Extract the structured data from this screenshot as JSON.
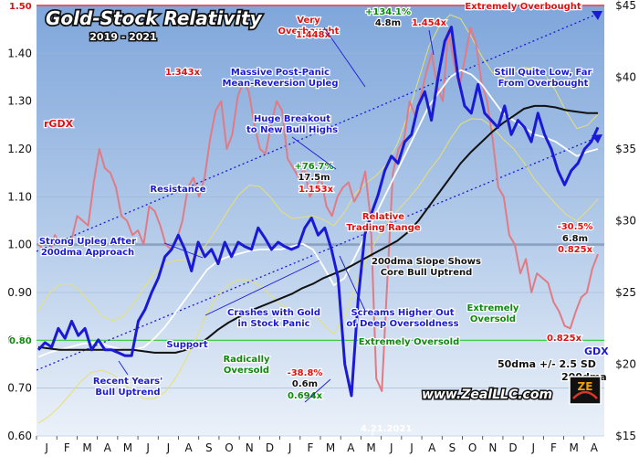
{
  "chart_data": {
    "type": "line",
    "title": "Gold-Stock Relativity",
    "subtitle": "2019 - 2021",
    "website": "www.ZealLLC.com",
    "x_tick_labels": [
      "J",
      "F",
      "M",
      "A",
      "M",
      "J",
      "J",
      "A",
      "S",
      "O",
      "N",
      "D",
      "J",
      "F",
      "M",
      "A",
      "M",
      "J",
      "J",
      "A",
      "S",
      "O",
      "N",
      "D",
      "J",
      "F",
      "M",
      "A"
    ],
    "left_axis": {
      "ylim": [
        0.6,
        1.5
      ],
      "ticks": [
        "0.60",
        "0.70",
        "0.80",
        "0.90",
        "1.00",
        "1.10",
        "1.20",
        "1.30",
        "1.40"
      ],
      "top_marker": "1.50",
      "label": "rGDX",
      "marker": "0.80"
    },
    "right_axis": {
      "ylim": [
        15,
        45
      ],
      "ticks": [
        "$15",
        "$20",
        "$25",
        "$30",
        "$35",
        "$40",
        "$45"
      ]
    },
    "legend": {
      "series_label": "GDX",
      "band_label": "50dma +/- 2.5 SD",
      "ma_label": "200dma"
    },
    "date_label": "4.21.2021",
    "series": [
      {
        "name": "rGDX",
        "color": "#e07b86",
        "values": [
          1.0,
          0.99,
          0.98,
          1.02,
          1.0,
          1.0,
          1.01,
          1.06,
          1.05,
          1.04,
          1.13,
          1.2,
          1.16,
          1.15,
          1.12,
          1.06,
          1.05,
          1.02,
          1.03,
          1.0,
          1.08,
          1.07,
          1.04,
          1.0,
          0.99,
          1.01,
          1.05,
          1.12,
          1.14,
          1.1,
          1.14,
          1.22,
          1.28,
          1.3,
          1.2,
          1.23,
          1.31,
          1.34,
          1.32,
          1.25,
          1.2,
          1.19,
          1.25,
          1.3,
          1.28,
          1.18,
          1.16,
          1.14,
          1.16,
          1.1,
          1.12,
          1.14,
          1.08,
          1.06,
          1.1,
          1.12,
          1.13,
          1.09,
          1.11,
          1.153,
          1.05,
          0.72,
          0.694,
          0.93,
          1.15,
          1.2,
          1.22,
          1.3,
          1.27,
          1.31,
          1.36,
          1.4,
          1.33,
          1.3,
          1.448,
          1.38,
          1.33,
          1.39,
          1.454,
          1.42,
          1.34,
          1.3,
          1.22,
          1.12,
          1.1,
          1.02,
          1.0,
          0.94,
          0.97,
          0.9,
          0.94,
          0.93,
          0.92,
          0.88,
          0.86,
          0.83,
          0.825,
          0.86,
          0.89,
          0.9,
          0.95,
          0.98
        ]
      },
      {
        "name": "GDX",
        "color": "#1a1ad6",
        "values": [
          21.0,
          21.5,
          21.2,
          22.5,
          21.8,
          23.0,
          22.0,
          22.5,
          21.0,
          21.7,
          21.0,
          21.0,
          20.8,
          20.6,
          20.6,
          23.0,
          23.8,
          25.0,
          26.0,
          27.5,
          28.0,
          29.0,
          28.0,
          26.5,
          28.5,
          27.5,
          28.0,
          27.0,
          28.5,
          27.5,
          28.5,
          28.2,
          28.0,
          29.5,
          28.8,
          28.0,
          28.5,
          28.2,
          28.0,
          28.2,
          29.5,
          30.2,
          29.0,
          29.5,
          28.0,
          26.0,
          20.0,
          17.8,
          24.5,
          29.0,
          30.5,
          31.8,
          33.5,
          34.5,
          34.0,
          35.5,
          36.0,
          38.0,
          39.0,
          37.0,
          40.0,
          42.5,
          43.5,
          40.0,
          38.0,
          37.5,
          39.5,
          37.5,
          37.0,
          36.5,
          38.0,
          36.0,
          37.0,
          36.5,
          35.5,
          37.5,
          36.0,
          35.0,
          33.5,
          32.5,
          33.5,
          34.0,
          35.0,
          35.5,
          36.5
        ]
      },
      {
        "name": "200dma",
        "color": "#111111",
        "values": [
          21.2,
          21.1,
          21.0,
          21.0,
          21.0,
          21.0,
          21.0,
          21.0,
          21.0,
          21.0,
          20.9,
          20.8,
          20.8,
          20.8,
          21.0,
          21.3,
          21.8,
          22.4,
          22.9,
          23.3,
          23.7,
          24.0,
          24.3,
          24.6,
          24.9,
          25.3,
          25.6,
          26.0,
          26.3,
          26.6,
          27.0,
          27.4,
          27.8,
          28.2,
          28.6,
          29.2,
          30.0,
          31.0,
          32.0,
          33.0,
          34.0,
          34.8,
          35.5,
          36.2,
          36.8,
          37.3,
          37.8,
          38.0,
          38.0,
          37.9,
          37.7,
          37.6,
          37.5,
          37.5
        ]
      },
      {
        "name": "50dma",
        "color": "#ffffff",
        "values": [
          20.5,
          20.8,
          21.0,
          21.2,
          21.4,
          21.5,
          21.4,
          21.2,
          21.0,
          21.0,
          21.2,
          21.8,
          22.6,
          23.6,
          24.6,
          25.6,
          26.6,
          27.2,
          27.5,
          27.7,
          27.9,
          28.0,
          28.0,
          28.0,
          28.2,
          28.4,
          28.0,
          26.8,
          25.5,
          26.0,
          27.5,
          29.0,
          30.5,
          32.0,
          33.5,
          35.0,
          36.5,
          38.0,
          39.0,
          40.0,
          40.5,
          40.2,
          39.5,
          38.5,
          37.5,
          37.0,
          36.5,
          36.0,
          35.8,
          35.5,
          35.0,
          34.5,
          34.8,
          35.0
        ]
      }
    ],
    "annotations": [
      "1.343x",
      "Very Overbought",
      "1.448x",
      "+134.1%",
      "4.8m",
      "1.454x",
      "Extremely Overbought",
      "Massive Post-Panic Mean-Reversion Upleg",
      "Still Quite Low, Far From Overbought",
      "Huge Breakout to New Bull Highs",
      "Resistance",
      "+76.7%",
      "17.5m",
      "1.153x",
      "Relative Trading Range",
      "-30.5%",
      "6.8m",
      "0.825x",
      "Strong Upleg After 200dma Approach",
      "200dma Slope Shows Core Bull Uptrend",
      "Crashes with Gold in Stock Panic",
      "Screams Higher Out of Deep Oversoldness",
      "Extremely Oversold",
      "Support",
      "Radically Oversold",
      "-38.8%",
      "0.6m",
      "0.694x",
      "Recent Years' Bull Uptrend"
    ]
  }
}
